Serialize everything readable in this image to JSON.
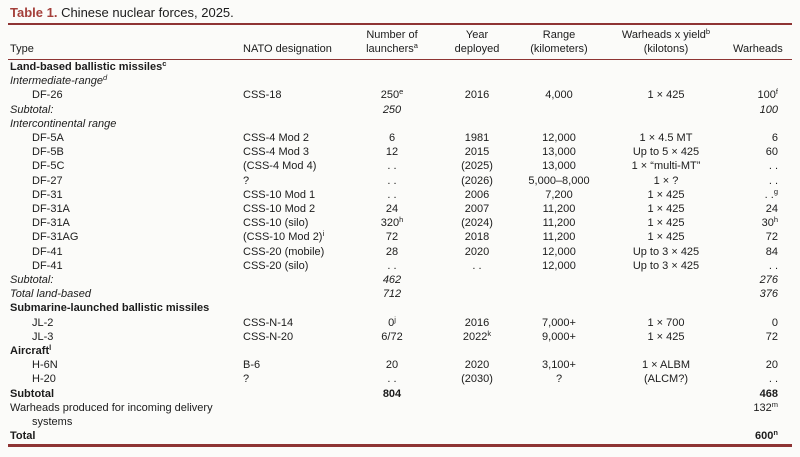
{
  "title": {
    "label": "Table 1.",
    "text": " Chinese nuclear forces, 2025."
  },
  "colors": {
    "accent_rule": "#8e3434",
    "title_accent": "#a43f3a",
    "text": "#1c1c1c",
    "background": "#fbfbf9"
  },
  "table": {
    "columns": [
      {
        "id": "type",
        "label": "Type"
      },
      {
        "id": "nato",
        "label": "NATO designation"
      },
      {
        "id": "launchers",
        "label": "Number of\nlaunchers^a"
      },
      {
        "id": "year",
        "label": "Year\ndeployed"
      },
      {
        "id": "range",
        "label": "Range\n(kilometers)"
      },
      {
        "id": "yield",
        "label": "Warheads x yield^b\n(kilotons)"
      },
      {
        "id": "warheads",
        "label": "Warheads"
      }
    ],
    "rows": [
      {
        "style": "section",
        "type": "Land-based ballistic missiles^c"
      },
      {
        "style": "subsection",
        "type": "Intermediate-range^d"
      },
      {
        "style": "item",
        "type": "DF-26",
        "nato": "CSS-18",
        "launchers": "250^e",
        "year": "2016",
        "range": "4,000",
        "yield": "1 × 425",
        "warheads": "100^f"
      },
      {
        "style": "subtotal",
        "type": "Subtotal:",
        "launchers": "250",
        "warheads": "100"
      },
      {
        "style": "subsection",
        "type": "Intercontinental range"
      },
      {
        "style": "item",
        "type": "DF-5A",
        "nato": "CSS-4 Mod 2",
        "launchers": "6",
        "year": "1981",
        "range": "12,000",
        "yield": "1 × 4.5 MT",
        "warheads": "6"
      },
      {
        "style": "item",
        "type": "DF-5B",
        "nato": "CSS-4 Mod 3",
        "launchers": "12",
        "year": "2015",
        "range": "13,000",
        "yield": "Up to 5 × 425",
        "warheads": "60"
      },
      {
        "style": "item",
        "type": "DF-5C",
        "nato": "(CSS-4 Mod 4)",
        "launchers": ". .",
        "year": "(2025)",
        "range": "13,000",
        "yield": "1 × “multi-MT”",
        "warheads": ". ."
      },
      {
        "style": "item",
        "type": "DF-27",
        "nato": "?",
        "launchers": ". .",
        "year": "(2026)",
        "range": "5,000–8,000",
        "yield": "1 × ?",
        "warheads": ". ."
      },
      {
        "style": "item",
        "type": "DF-31",
        "nato": "CSS-10 Mod 1",
        "launchers": ". .",
        "year": "2006",
        "range": "7,200",
        "yield": "1 × 425",
        "warheads": ". .^g"
      },
      {
        "style": "item",
        "type": "DF-31A",
        "nato": "CSS-10 Mod 2",
        "launchers": "24",
        "year": "2007",
        "range": "11,200",
        "yield": "1 × 425",
        "warheads": "24"
      },
      {
        "style": "item",
        "type": "DF-31A",
        "nato": "CSS-10 (silo)",
        "launchers": "320^h",
        "year": "(2024)",
        "range": "11,200",
        "yield": "1 × 425",
        "warheads": "30^h"
      },
      {
        "style": "item",
        "type": "DF-31AG",
        "nato": "(CSS-10 Mod 2)^i",
        "launchers": "72",
        "year": "2018",
        "range": "11,200",
        "yield": "1 × 425",
        "warheads": "72"
      },
      {
        "style": "item",
        "type": "DF-41",
        "nato": "CSS-20 (mobile)",
        "launchers": "28",
        "year": "2020",
        "range": "12,000",
        "yield": "Up to 3 × 425",
        "warheads": "84"
      },
      {
        "style": "item",
        "type": "DF-41",
        "nato": "CSS-20 (silo)",
        "launchers": ". .",
        "year": ". .",
        "range": "12,000",
        "yield": "Up to 3 × 425",
        "warheads": ". ."
      },
      {
        "style": "subtotal",
        "type": "Subtotal:",
        "launchers": "462",
        "warheads": "276"
      },
      {
        "style": "subtotal",
        "type": "Total land-based",
        "launchers": "712",
        "warheads": "376"
      },
      {
        "style": "section",
        "type": "Submarine-launched ballistic missiles"
      },
      {
        "style": "item",
        "type": "JL-2",
        "nato": "CSS-N-14",
        "launchers": "0^j",
        "year": "2016",
        "range": "7,000+",
        "yield": "1 × 700",
        "warheads": "0"
      },
      {
        "style": "item",
        "type": "JL-3",
        "nato": "CSS-N-20",
        "launchers": "6/72",
        "year": "2022^k",
        "range": "9,000+",
        "yield": "1 × 425",
        "warheads": "72"
      },
      {
        "style": "section",
        "type": "Aircraft^l"
      },
      {
        "style": "item",
        "type": "H-6N",
        "nato": "B-6",
        "launchers": "20",
        "year": "2020",
        "range": "3,100+",
        "yield": "1 × ALBM",
        "warheads": "20"
      },
      {
        "style": "item",
        "type": "H-20",
        "nato": "?",
        "launchers": ". .",
        "year": "(2030)",
        "range": "?",
        "yield": "(ALCM?)",
        "warheads": ". ."
      },
      {
        "style": "total",
        "type": "Subtotal",
        "launchers": "804",
        "warheads": "468"
      },
      {
        "style": "wrap",
        "type": "Warheads produced for incoming delivery systems",
        "warheads": "132^m"
      },
      {
        "style": "total",
        "type": "Total",
        "warheads": "600^n"
      }
    ]
  }
}
